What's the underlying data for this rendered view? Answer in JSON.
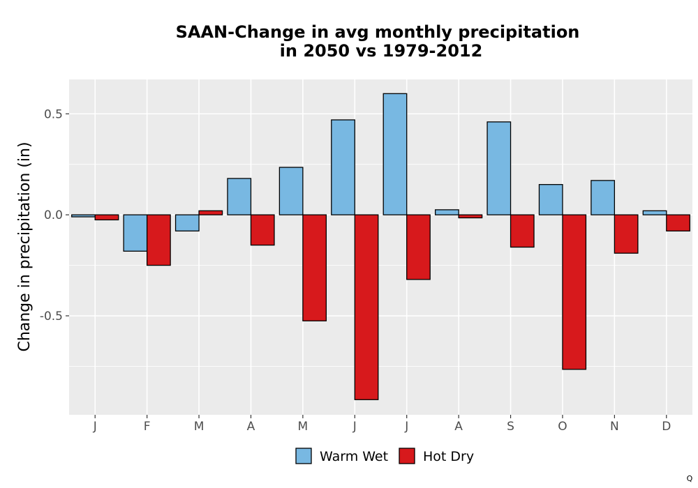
{
  "chart_data": {
    "type": "bar",
    "title": [
      "SAAN-Change in avg monthly precipitation",
      "in 2050 vs 1979-2012"
    ],
    "xlabel": "",
    "ylabel": "Change in precipitation (in)",
    "categories": [
      "J",
      "F",
      "M",
      "A",
      "M",
      "J",
      "J",
      "A",
      "S",
      "O",
      "N",
      "D"
    ],
    "series": [
      {
        "name": "Warm Wet",
        "color": "#78b8e2",
        "values": [
          -0.01,
          -0.18,
          -0.08,
          0.18,
          0.235,
          0.47,
          0.6,
          0.025,
          0.46,
          0.15,
          0.17,
          0.02
        ]
      },
      {
        "name": "Hot Dry",
        "color": "#d7191c",
        "values": [
          -0.025,
          -0.25,
          0.02,
          -0.15,
          -0.525,
          -0.915,
          -0.32,
          -0.015,
          -0.16,
          -0.765,
          -0.19,
          -0.08
        ]
      }
    ],
    "yticks": [
      0.5,
      0.0,
      -0.5
    ],
    "ytick_labels": [
      "0.5",
      "0.0",
      "-0.5"
    ],
    "ylim": [
      -0.99,
      0.67
    ],
    "grid": true,
    "legend_position": "bottom",
    "panel_background": "#ebebeb",
    "grid_color": "#ffffff"
  },
  "corner_mark": "Q"
}
